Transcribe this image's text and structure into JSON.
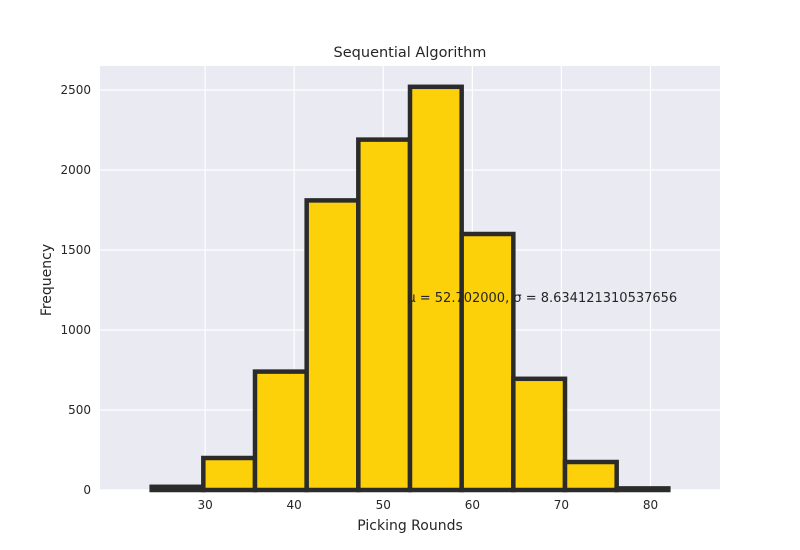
{
  "chart_data": {
    "type": "bar",
    "title": "Sequential Algorithm",
    "xlabel": "Picking Rounds",
    "ylabel": "Frequency",
    "bin_edges": [
      24,
      29.8,
      35.6,
      41.4,
      47.2,
      53,
      58.8,
      64.6,
      70.4,
      76.2,
      82
    ],
    "values": [
      20,
      200,
      740,
      1810,
      2190,
      2520,
      1600,
      695,
      175,
      10
    ],
    "xlim": [
      18.2,
      87.8
    ],
    "ylim": [
      0,
      2500
    ],
    "xticks": [
      30,
      40,
      50,
      60,
      70,
      80
    ],
    "yticks": [
      0,
      500,
      1000,
      1500,
      2000,
      2500
    ],
    "grid": true,
    "annotation": {
      "text": "μ = 52.702000,  σ = 8.634121310537656",
      "x": 52.702,
      "y": 1200
    },
    "colors": {
      "bar_fill": "#fcd10a",
      "bar_edge": "#2b2b2b",
      "axes_background": "#eaeaf2"
    }
  }
}
